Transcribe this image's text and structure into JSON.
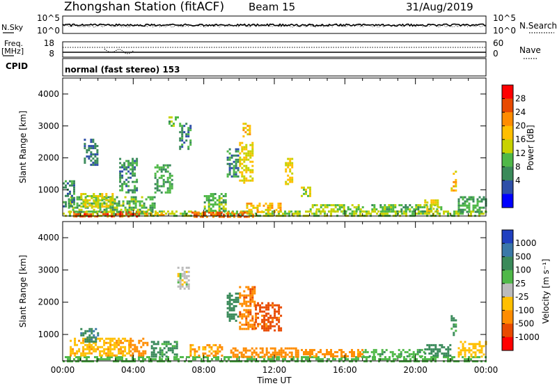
{
  "header": {
    "station": "Zhongshan Station (fitACF)",
    "beam": "Beam 15",
    "date": "31/Aug/2019"
  },
  "noise_panel": {
    "left_label": "N.Sky",
    "right_label": "N.Search",
    "left_ticks": [
      "10^5",
      "10^0"
    ],
    "right_ticks": [
      "10^5",
      "10^0"
    ]
  },
  "freq_panel": {
    "left_label_top": "Freq.",
    "left_label_unit": "[MHz]",
    "left_ticks": [
      "18",
      "8"
    ],
    "right_label": "Nave",
    "right_ticks": [
      "60",
      "0"
    ],
    "cpid_label": "CPID",
    "cpid_text": "normal (fast stereo) 153"
  },
  "chart_data": [
    {
      "type": "heatmap",
      "name": "power",
      "ylabel": "Slant Range [km]",
      "xlabel": "",
      "y_ticks": [
        "4000",
        "3000",
        "2000",
        "1000"
      ],
      "ylim": [
        180,
        4500
      ],
      "colorbar": {
        "label": "Power [dB]",
        "ticks": [
          "28",
          "24",
          "20",
          "16",
          "12",
          "8",
          "4"
        ],
        "colors": [
          "#ff0000",
          "#e84a00",
          "#ff8c00",
          "#ffbf00",
          "#c8d200",
          "#4fb848",
          "#3a8a5a",
          "#2e4fa8",
          "#0000ff"
        ]
      },
      "patches": [
        {
          "t": [
            0.0,
            24.0
          ],
          "r": [
            180,
            350
          ],
          "v": 12
        },
        {
          "t": [
            0.6,
            4.3
          ],
          "r": [
            180,
            330
          ],
          "v": 26
        },
        {
          "t": [
            4.6,
            5.8
          ],
          "r": [
            180,
            310
          ],
          "v": 20
        },
        {
          "t": [
            7.3,
            10.8
          ],
          "r": [
            180,
            320
          ],
          "v": 24
        },
        {
          "t": [
            0.3,
            5.2
          ],
          "r": [
            330,
            800
          ],
          "v": 10
        },
        {
          "t": [
            0.0,
            0.6
          ],
          "r": [
            500,
            1300
          ],
          "v": 6
        },
        {
          "t": [
            1.0,
            2.8
          ],
          "r": [
            450,
            900
          ],
          "v": 14
        },
        {
          "t": [
            1.2,
            2.0
          ],
          "r": [
            1800,
            2600
          ],
          "v": 4
        },
        {
          "t": [
            3.2,
            4.2
          ],
          "r": [
            900,
            2000
          ],
          "v": 6
        },
        {
          "t": [
            5.2,
            6.2
          ],
          "r": [
            900,
            1800
          ],
          "v": 8
        },
        {
          "t": [
            6.6,
            7.2
          ],
          "r": [
            2300,
            3100
          ],
          "v": 6
        },
        {
          "t": [
            6.0,
            6.5
          ],
          "r": [
            3000,
            3300
          ],
          "v": 10
        },
        {
          "t": [
            8.0,
            9.2
          ],
          "r": [
            330,
            900
          ],
          "v": 10
        },
        {
          "t": [
            9.3,
            10.0
          ],
          "r": [
            1400,
            2300
          ],
          "v": 6
        },
        {
          "t": [
            10.0,
            10.8
          ],
          "r": [
            1200,
            2500
          ],
          "v": 16
        },
        {
          "t": [
            10.2,
            10.6
          ],
          "r": [
            2700,
            3100
          ],
          "v": 18
        },
        {
          "t": [
            10.4,
            12.3
          ],
          "r": [
            330,
            600
          ],
          "v": 18
        },
        {
          "t": [
            12.6,
            13.0
          ],
          "r": [
            1200,
            2000
          ],
          "v": 16
        },
        {
          "t": [
            13.5,
            14.0
          ],
          "r": [
            800,
            1100
          ],
          "v": 14
        },
        {
          "t": [
            14.0,
            17.0
          ],
          "r": [
            330,
            550
          ],
          "v": 12
        },
        {
          "t": [
            17.5,
            21.5
          ],
          "r": [
            330,
            550
          ],
          "v": 10
        },
        {
          "t": [
            20.5,
            21.3
          ],
          "r": [
            330,
            700
          ],
          "v": 16
        },
        {
          "t": [
            22.0,
            22.3
          ],
          "r": [
            1000,
            1600
          ],
          "v": 18
        },
        {
          "t": [
            22.4,
            24.0
          ],
          "r": [
            330,
            800
          ],
          "v": 8
        }
      ]
    },
    {
      "type": "heatmap",
      "name": "velocity",
      "ylabel": "Slant Range [km]",
      "xlabel": "Time UT",
      "x_ticks": [
        "00:00",
        "04:00",
        "08:00",
        "12:00",
        "16:00",
        "20:00",
        "00:00"
      ],
      "y_ticks": [
        "4000",
        "3000",
        "2000",
        "1000"
      ],
      "ylim": [
        180,
        4500
      ],
      "colorbar": {
        "label": "Velocity [m s⁻¹]",
        "ticks": [
          "1000",
          "500",
          "100",
          "25",
          "-25",
          "-100",
          "-500",
          "-1000"
        ],
        "colors": [
          "#2040c0",
          "#3a78a8",
          "#3a8a5a",
          "#4fb848",
          "#bbbbbb",
          "#ffbf00",
          "#ff8c00",
          "#e84a00",
          "#ff0000"
        ]
      },
      "patches": [
        {
          "t": [
            0.0,
            24.0
          ],
          "r": [
            180,
            330
          ],
          "v": 60
        },
        {
          "t": [
            0.4,
            3.8
          ],
          "r": [
            330,
            900
          ],
          "v": -80
        },
        {
          "t": [
            1.0,
            2.0
          ],
          "r": [
            800,
            1200
          ],
          "v": 400
        },
        {
          "t": [
            3.8,
            4.8
          ],
          "r": [
            330,
            900
          ],
          "v": -300
        },
        {
          "t": [
            5.0,
            6.5
          ],
          "r": [
            330,
            800
          ],
          "v": 150
        },
        {
          "t": [
            6.5,
            7.2
          ],
          "r": [
            2400,
            3100
          ],
          "v": 0
        },
        {
          "t": [
            7.2,
            9.0
          ],
          "r": [
            330,
            700
          ],
          "v": -120
        },
        {
          "t": [
            9.3,
            10.0
          ],
          "r": [
            1400,
            2300
          ],
          "v": 200
        },
        {
          "t": [
            10.0,
            10.9
          ],
          "r": [
            1200,
            2500
          ],
          "v": -400
        },
        {
          "t": [
            10.9,
            12.4
          ],
          "r": [
            1100,
            2000
          ],
          "v": -700
        },
        {
          "t": [
            9.5,
            13.5
          ],
          "r": [
            330,
            600
          ],
          "v": -350
        },
        {
          "t": [
            13.5,
            17.0
          ],
          "r": [
            330,
            550
          ],
          "v": -150
        },
        {
          "t": [
            17.0,
            20.5
          ],
          "r": [
            330,
            550
          ],
          "v": 80
        },
        {
          "t": [
            20.5,
            22.0
          ],
          "r": [
            330,
            700
          ],
          "v": 300
        },
        {
          "t": [
            22.0,
            22.3
          ],
          "r": [
            1000,
            1600
          ],
          "v": 150
        },
        {
          "t": [
            22.4,
            24.0
          ],
          "r": [
            330,
            800
          ],
          "v": -60
        }
      ]
    }
  ]
}
